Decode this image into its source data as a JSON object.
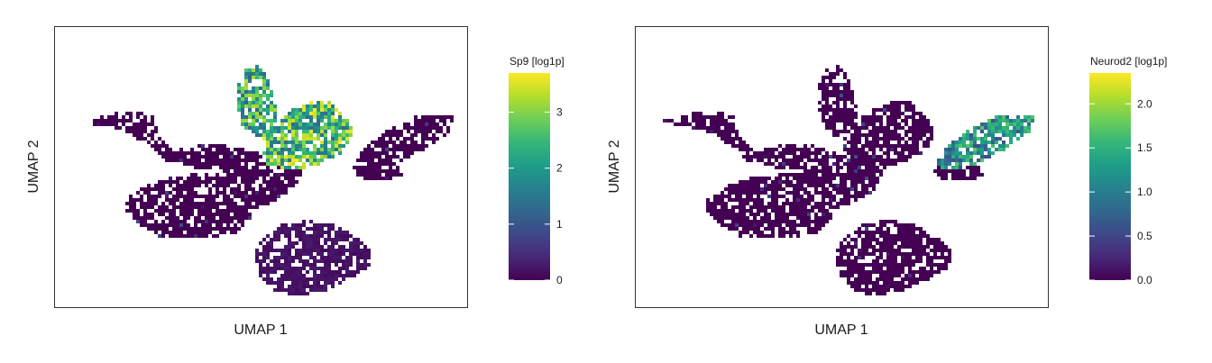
{
  "chart_data": [
    {
      "type": "heatmap",
      "subtype": "umap-hexbin-embedding",
      "xlabel": "UMAP 1",
      "ylabel": "UMAP 2",
      "colormap": "viridis",
      "colorbar": {
        "title": "Sp9 [log1p]",
        "range": [
          0,
          3.7
        ],
        "ticks": [
          0,
          1,
          2,
          3
        ],
        "tick_labels": [
          "0",
          "1",
          "2",
          "3"
        ]
      },
      "expression_regions": [
        {
          "region": "top lobe",
          "level": "high",
          "approx_value": 2.5
        },
        {
          "region": "upper-center branch",
          "level": "high",
          "approx_value": 2.8
        },
        {
          "region": "left arm",
          "level": "none",
          "approx_value": 0
        },
        {
          "region": "lower-left cluster",
          "level": "none",
          "approx_value": 0
        },
        {
          "region": "lower-right cluster",
          "level": "low",
          "approx_value": 0.2
        },
        {
          "region": "right arm",
          "level": "none",
          "approx_value": 0
        }
      ]
    },
    {
      "type": "heatmap",
      "subtype": "umap-hexbin-embedding",
      "xlabel": "UMAP 1",
      "ylabel": "UMAP 2",
      "colormap": "viridis",
      "colorbar": {
        "title": "Neurod2 [log1p]",
        "range": [
          0,
          2.35
        ],
        "ticks": [
          0,
          0.5,
          1,
          1.5,
          2
        ],
        "tick_labels": [
          "0.0",
          "0.5",
          "1.0",
          "1.5",
          "2.0"
        ]
      },
      "expression_regions": [
        {
          "region": "top lobe",
          "level": "none",
          "approx_value": 0
        },
        {
          "region": "upper-center branch",
          "level": "none",
          "approx_value": 0
        },
        {
          "region": "left arm",
          "level": "none",
          "approx_value": 0
        },
        {
          "region": "lower-left cluster",
          "level": "none",
          "approx_value": 0
        },
        {
          "region": "lower-right cluster",
          "level": "none",
          "approx_value": 0
        },
        {
          "region": "right arm",
          "level": "high",
          "approx_value": 1.3
        }
      ]
    }
  ]
}
